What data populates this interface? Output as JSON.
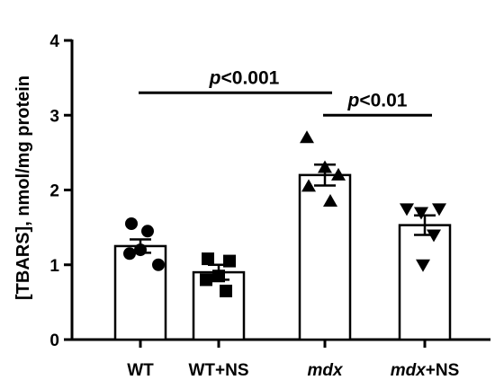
{
  "chart_data": {
    "type": "bar",
    "ylabel": "[TBARS], nmol/mg protein",
    "ylim": [
      0,
      4
    ],
    "yticks": [
      "0",
      "1",
      "2",
      "3",
      "4"
    ],
    "categories": [
      {
        "label": "WT",
        "label_italic": "",
        "label_rest": "WT",
        "mean": 1.25,
        "sem": 0.09,
        "marker": "circle",
        "points": [
          1.55,
          1.45,
          1.2,
          1.15,
          1.0
        ]
      },
      {
        "label": "WT+NS",
        "label_italic": "",
        "label_rest": "WT+NS",
        "mean": 0.9,
        "sem": 0.1,
        "marker": "square",
        "points": [
          1.08,
          1.05,
          0.85,
          0.8,
          0.65
        ]
      },
      {
        "label": "mdx",
        "label_italic": "mdx",
        "label_rest": "",
        "mean": 2.2,
        "sem": 0.14,
        "marker": "triangle-up",
        "points": [
          2.7,
          2.3,
          2.2,
          2.05,
          1.85
        ]
      },
      {
        "label": "mdx+NS",
        "label_italic": "mdx",
        "label_rest": "+NS",
        "mean": 1.53,
        "sem": 0.13,
        "marker": "triangle-down",
        "points": [
          1.75,
          1.75,
          1.7,
          1.4,
          1.0
        ]
      }
    ],
    "annotations": [
      {
        "from": 0,
        "to": 2,
        "y": 3.3,
        "text_italic": "p",
        "text_rest": "<0.001"
      },
      {
        "from": 2,
        "to": 3,
        "y": 3.0,
        "text_italic": "p",
        "text_rest": "<0.01"
      }
    ],
    "grid": false,
    "legend": "none"
  }
}
